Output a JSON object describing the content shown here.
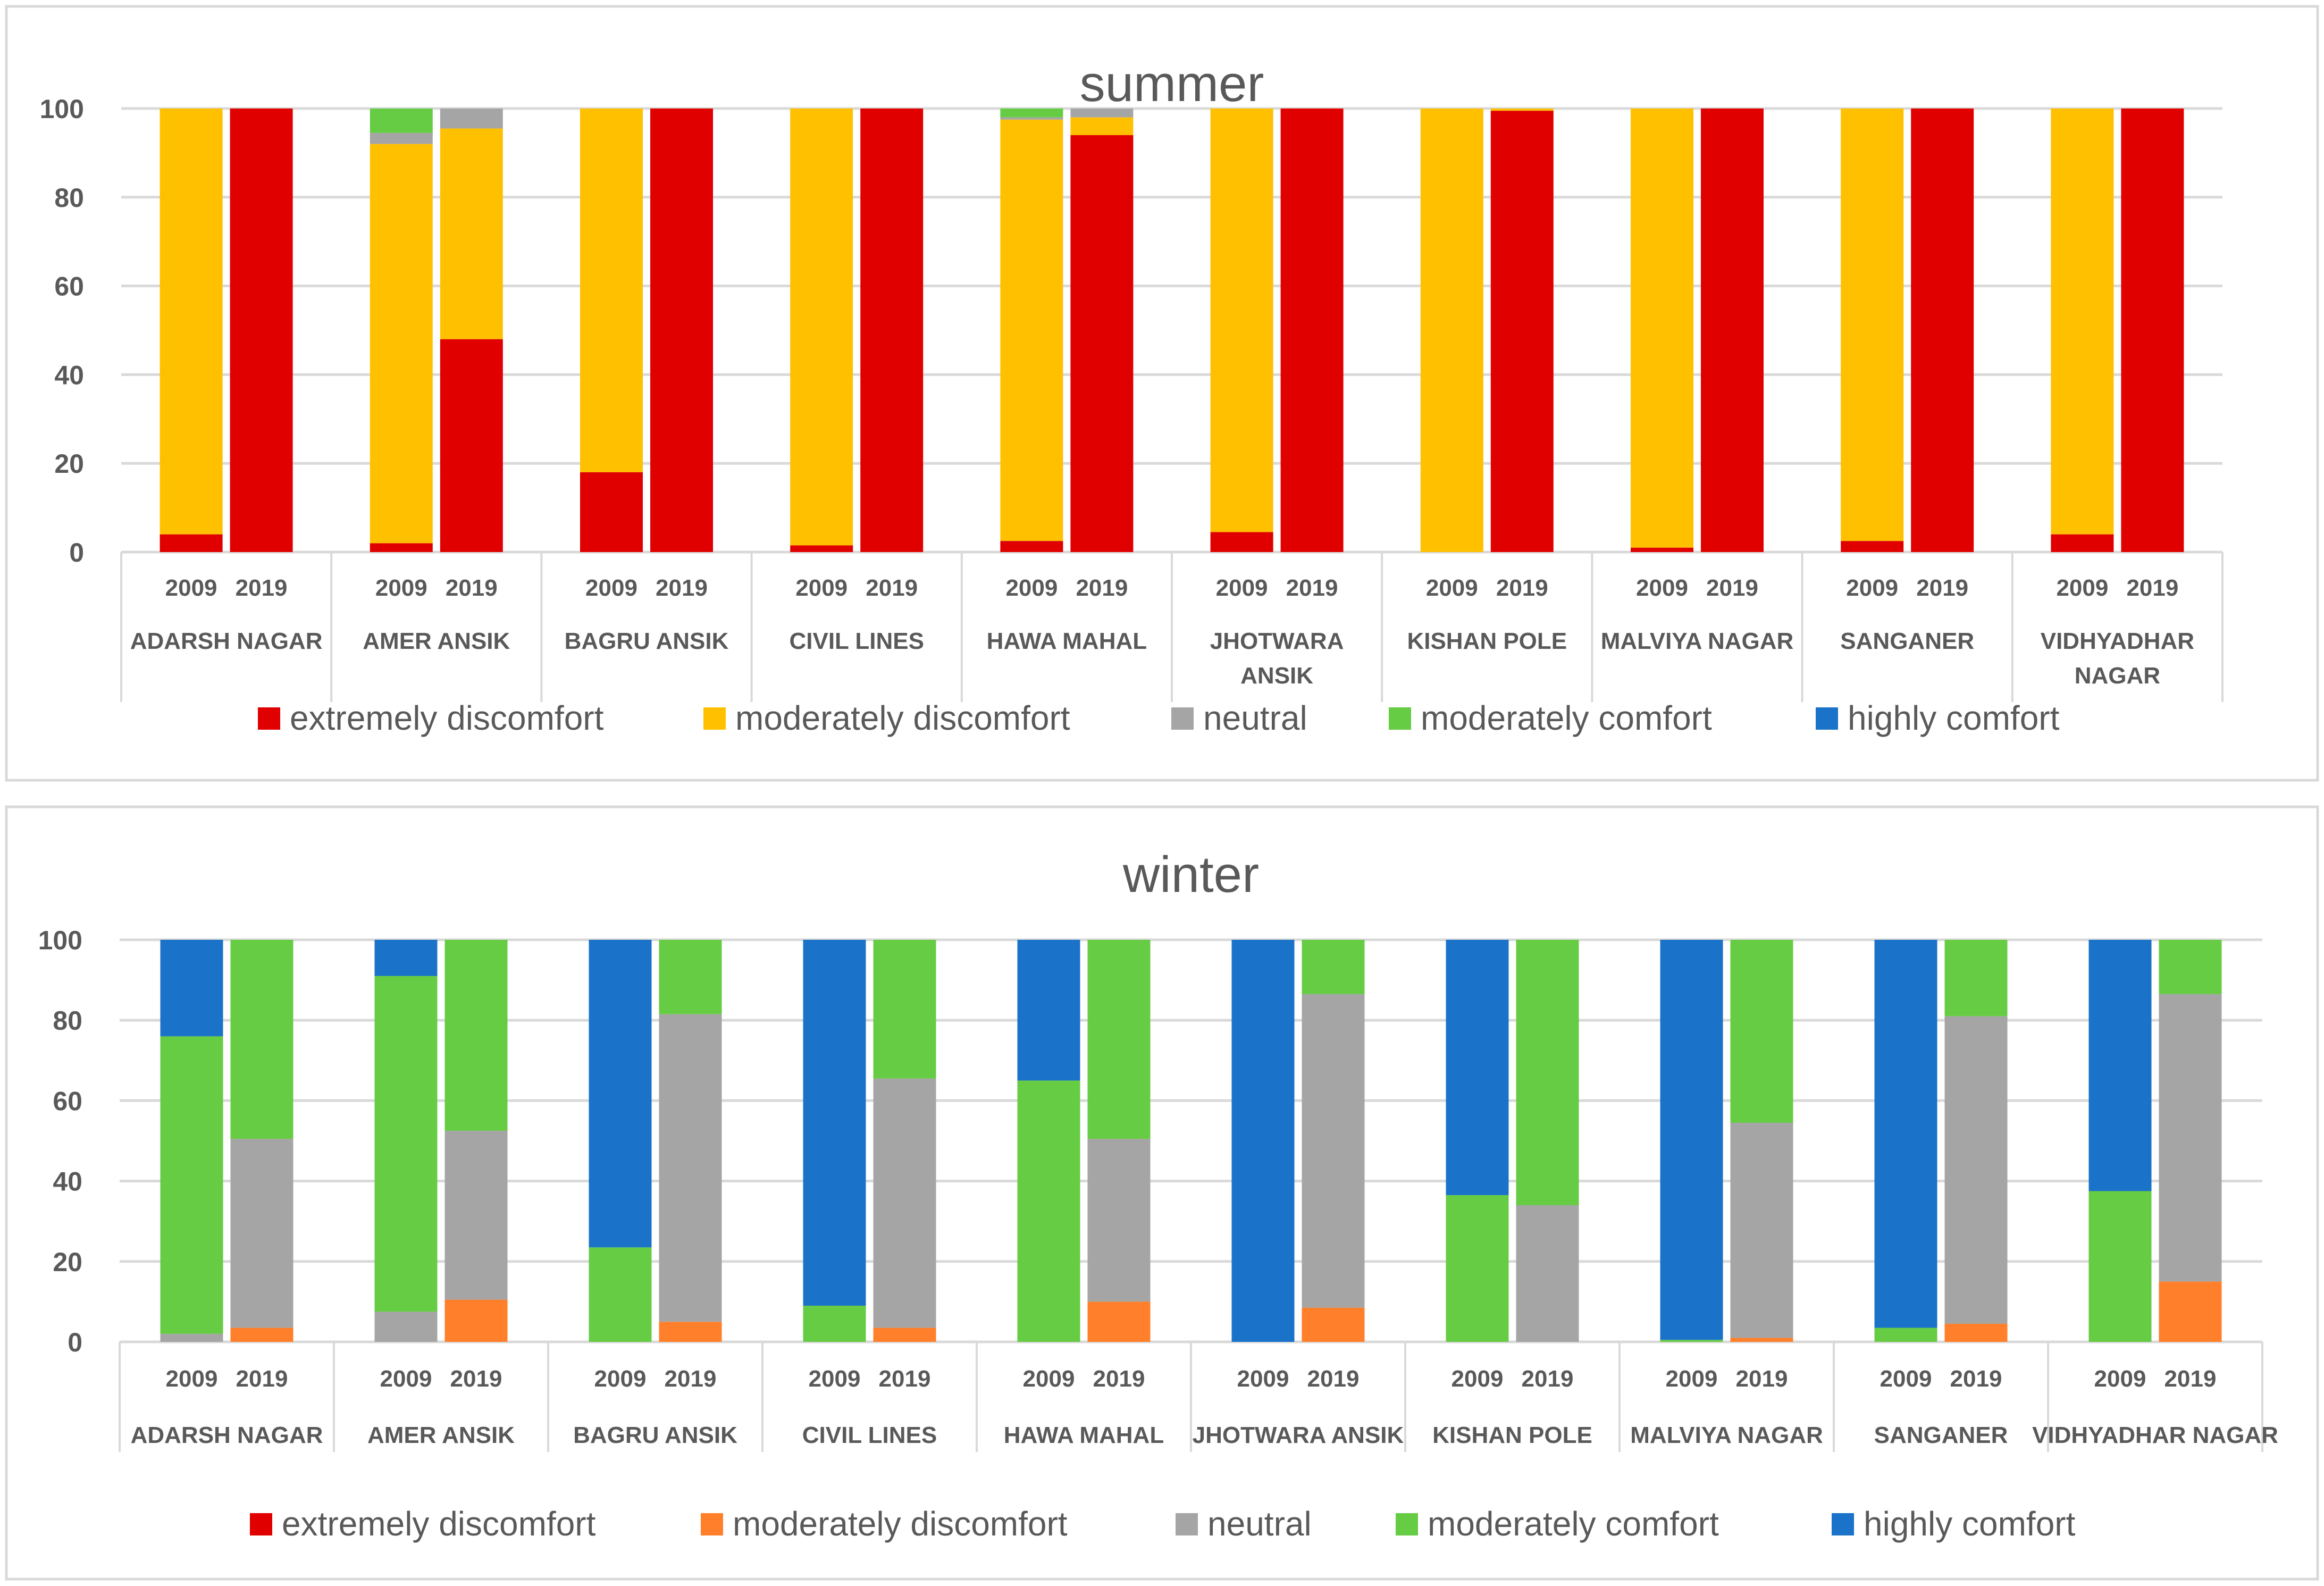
{
  "colors": {
    "extremely discomfort": "#e00000",
    "moderately discomfort_summer": "#ffc000",
    "moderately discomfort_winter": "#ff7f2a",
    "neutral": "#a5a5a5",
    "moderately comfort": "#66cc44",
    "highly comfort": "#1a73c8"
  },
  "chart_data": [
    {
      "type": "bar",
      "stacked": true,
      "title": "summer",
      "ylim": [
        0,
        100
      ],
      "yticks": [
        0,
        20,
        40,
        60,
        80,
        100
      ],
      "grid": true,
      "legend_position": "bottom",
      "groups": [
        "ADARSH NAGAR",
        "AMER ANSIK",
        "BAGRU ANSIK",
        "CIVIL LINES",
        "HAWA MAHAL",
        "JHOTWARA ANSIK",
        "KISHAN POLE",
        "MALVIYA NAGAR",
        "SANGANER",
        "VIDHYADHAR NAGAR"
      ],
      "years": [
        "2009",
        "2019"
      ],
      "series": [
        {
          "name": "extremely discomfort",
          "values": [
            [
              4,
              100
            ],
            [
              2,
              48
            ],
            [
              18,
              100
            ],
            [
              1.5,
              100
            ],
            [
              2.5,
              94
            ],
            [
              4.5,
              100
            ],
            [
              0,
              99.5
            ],
            [
              1,
              100
            ],
            [
              2.5,
              100
            ],
            [
              4,
              100
            ]
          ]
        },
        {
          "name": "moderately discomfort",
          "values": [
            [
              96,
              0
            ],
            [
              90,
              47.5
            ],
            [
              82,
              0
            ],
            [
              98.5,
              0
            ],
            [
              95,
              4
            ],
            [
              95.5,
              0
            ],
            [
              100,
              0.5
            ],
            [
              99,
              0
            ],
            [
              97.5,
              0
            ],
            [
              96,
              0
            ]
          ]
        },
        {
          "name": "neutral",
          "values": [
            [
              0,
              0
            ],
            [
              2.5,
              4.5
            ],
            [
              0,
              0
            ],
            [
              0,
              0
            ],
            [
              0.5,
              2
            ],
            [
              0,
              0
            ],
            [
              0,
              0
            ],
            [
              0,
              0
            ],
            [
              0,
              0
            ],
            [
              0,
              0
            ]
          ]
        },
        {
          "name": "moderately comfort",
          "values": [
            [
              0,
              0
            ],
            [
              5.5,
              0
            ],
            [
              0,
              0
            ],
            [
              0,
              0
            ],
            [
              2,
              0
            ],
            [
              0,
              0
            ],
            [
              0,
              0
            ],
            [
              0,
              0
            ],
            [
              0,
              0
            ],
            [
              0,
              0
            ]
          ]
        },
        {
          "name": "highly comfort",
          "values": [
            [
              0,
              0
            ],
            [
              0,
              0
            ],
            [
              0,
              0
            ],
            [
              0,
              0
            ],
            [
              0,
              0
            ],
            [
              0,
              0
            ],
            [
              0,
              0
            ],
            [
              0,
              0
            ],
            [
              0,
              0
            ],
            [
              0,
              0
            ]
          ]
        }
      ]
    },
    {
      "type": "bar",
      "stacked": true,
      "title": "winter",
      "ylim": [
        0,
        100
      ],
      "yticks": [
        0,
        20,
        40,
        60,
        80,
        100
      ],
      "grid": true,
      "legend_position": "bottom",
      "groups": [
        "ADARSH NAGAR",
        "AMER ANSIK",
        "BAGRU ANSIK",
        "CIVIL LINES",
        "HAWA MAHAL",
        "JHOTWARA ANSIK",
        "KISHAN POLE",
        "MALVIYA NAGAR",
        "SANGANER",
        "VIDHYADHAR NAGAR"
      ],
      "years": [
        "2009",
        "2019"
      ],
      "series": [
        {
          "name": "extremely discomfort",
          "values": [
            [
              0,
              0
            ],
            [
              0,
              0
            ],
            [
              0,
              0
            ],
            [
              0,
              0
            ],
            [
              0,
              0
            ],
            [
              0,
              0
            ],
            [
              0,
              0
            ],
            [
              0,
              0
            ],
            [
              0,
              0
            ],
            [
              0,
              0
            ]
          ]
        },
        {
          "name": "moderately discomfort",
          "values": [
            [
              0,
              3.5
            ],
            [
              0,
              10.5
            ],
            [
              0,
              5
            ],
            [
              0,
              3.5
            ],
            [
              0,
              10
            ],
            [
              0,
              8.5
            ],
            [
              0,
              0
            ],
            [
              0,
              1
            ],
            [
              0,
              4.5
            ],
            [
              0,
              15
            ]
          ]
        },
        {
          "name": "neutral",
          "values": [
            [
              2,
              47
            ],
            [
              7.5,
              42
            ],
            [
              0,
              76.5
            ],
            [
              0,
              62
            ],
            [
              0,
              40.5
            ],
            [
              0,
              78
            ],
            [
              0,
              34
            ],
            [
              0,
              53.5
            ],
            [
              0,
              76.5
            ],
            [
              0,
              71.5
            ]
          ]
        },
        {
          "name": "moderately comfort",
          "values": [
            [
              74,
              49.5
            ],
            [
              83.5,
              47.5
            ],
            [
              23.5,
              18.5
            ],
            [
              9,
              34.5
            ],
            [
              65,
              49.5
            ],
            [
              0,
              13.5
            ],
            [
              36.5,
              66
            ],
            [
              0.5,
              45.5
            ],
            [
              3.5,
              19
            ],
            [
              37.5,
              13.5
            ]
          ]
        },
        {
          "name": "highly comfort",
          "values": [
            [
              24,
              0
            ],
            [
              9,
              0
            ],
            [
              76.5,
              0
            ],
            [
              91,
              0
            ],
            [
              35,
              0
            ],
            [
              100,
              0
            ],
            [
              63.5,
              0
            ],
            [
              99.5,
              0
            ],
            [
              96.5,
              0
            ],
            [
              62.5,
              0
            ]
          ]
        }
      ]
    }
  ]
}
